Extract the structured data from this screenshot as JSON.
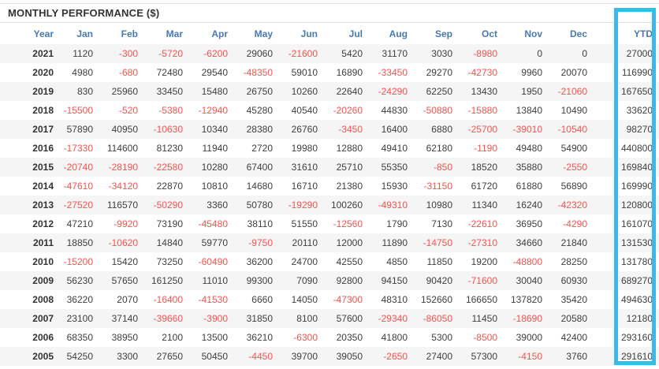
{
  "panel": {
    "title": "MONTHLY PERFORMANCE ($)"
  },
  "colors": {
    "header_text": "#4a79b2",
    "positive_text": "#3f3f3f",
    "negative_text": "#f9534e",
    "year_text": "#333333",
    "row_stripe": "#f5f5f5",
    "ytd_highlight_border": "#3cb8e9",
    "title_text": "#333333"
  },
  "table": {
    "columns": [
      "Year",
      "Jan",
      "Feb",
      "Mar",
      "Apr",
      "May",
      "Jun",
      "Jul",
      "Aug",
      "Sep",
      "Oct",
      "Nov",
      "Dec",
      "YTD"
    ],
    "rows": [
      {
        "year": "2021",
        "months": [
          1120,
          -300,
          -5720,
          -6200,
          29060,
          -21600,
          5420,
          31170,
          3030,
          -8980,
          0,
          0
        ],
        "ytd": 27000
      },
      {
        "year": "2020",
        "months": [
          4980,
          -680,
          72480,
          29540,
          -48350,
          59010,
          16890,
          -33450,
          29270,
          -42730,
          9960,
          20070
        ],
        "ytd": 116990
      },
      {
        "year": "2019",
        "months": [
          830,
          25960,
          33450,
          15480,
          26750,
          10260,
          22640,
          -24290,
          62250,
          13430,
          1950,
          -21060
        ],
        "ytd": 167650
      },
      {
        "year": "2018",
        "months": [
          -15500,
          -520,
          -5380,
          -12940,
          45280,
          40540,
          -20260,
          44830,
          -50880,
          -15880,
          13840,
          10490
        ],
        "ytd": 33620
      },
      {
        "year": "2017",
        "months": [
          57890,
          40950,
          -10630,
          10340,
          28380,
          26760,
          -3450,
          16400,
          6880,
          -25700,
          -39010,
          -10540
        ],
        "ytd": 98270
      },
      {
        "year": "2016",
        "months": [
          -17330,
          114600,
          81230,
          11940,
          2720,
          19980,
          12880,
          49410,
          62180,
          -1190,
          49480,
          54900
        ],
        "ytd": 440800
      },
      {
        "year": "2015",
        "months": [
          -20740,
          -28190,
          -22580,
          10280,
          67400,
          31610,
          25710,
          55350,
          -850,
          18520,
          35880,
          -2550
        ],
        "ytd": 169840
      },
      {
        "year": "2014",
        "months": [
          -47610,
          -34120,
          22870,
          10810,
          14680,
          16710,
          21380,
          15930,
          -31150,
          61720,
          61880,
          56890
        ],
        "ytd": 169990
      },
      {
        "year": "2013",
        "months": [
          -27520,
          116570,
          -50290,
          3360,
          50780,
          -19290,
          100260,
          -49310,
          10980,
          11340,
          16240,
          -42320
        ],
        "ytd": 120800
      },
      {
        "year": "2012",
        "months": [
          47210,
          -9920,
          73190,
          -45480,
          38110,
          51550,
          -12560,
          1790,
          7130,
          -22610,
          36950,
          -4290
        ],
        "ytd": 161070
      },
      {
        "year": "2011",
        "months": [
          18850,
          -10620,
          14840,
          59770,
          -9750,
          20110,
          12000,
          11890,
          -14750,
          -27310,
          34660,
          21840
        ],
        "ytd": 131530
      },
      {
        "year": "2010",
        "months": [
          -15200,
          15420,
          73250,
          -60490,
          36200,
          24700,
          42550,
          4850,
          11850,
          19200,
          -48800,
          28250
        ],
        "ytd": 131780
      },
      {
        "year": "2009",
        "months": [
          56230,
          57650,
          161250,
          11010,
          99300,
          7090,
          92800,
          94150,
          90420,
          -71600,
          30040,
          60930
        ],
        "ytd": 689270
      },
      {
        "year": "2008",
        "months": [
          36220,
          2070,
          -16400,
          -41530,
          6660,
          14050,
          -47300,
          48310,
          152660,
          166650,
          137820,
          35420
        ],
        "ytd": 494630
      },
      {
        "year": "2007",
        "months": [
          23100,
          37140,
          -39660,
          -3900,
          31850,
          8100,
          57600,
          -29340,
          -86050,
          11450,
          -18690,
          20580
        ],
        "ytd": 12180
      },
      {
        "year": "2006",
        "months": [
          68350,
          38950,
          2100,
          13500,
          36210,
          -6300,
          20350,
          41800,
          5300,
          -8500,
          39000,
          42400
        ],
        "ytd": 293160
      },
      {
        "year": "2005",
        "months": [
          54250,
          3300,
          27650,
          50450,
          -4450,
          39700,
          39050,
          -2650,
          27400,
          57300,
          -4150,
          3760
        ],
        "ytd": 291610
      }
    ]
  }
}
